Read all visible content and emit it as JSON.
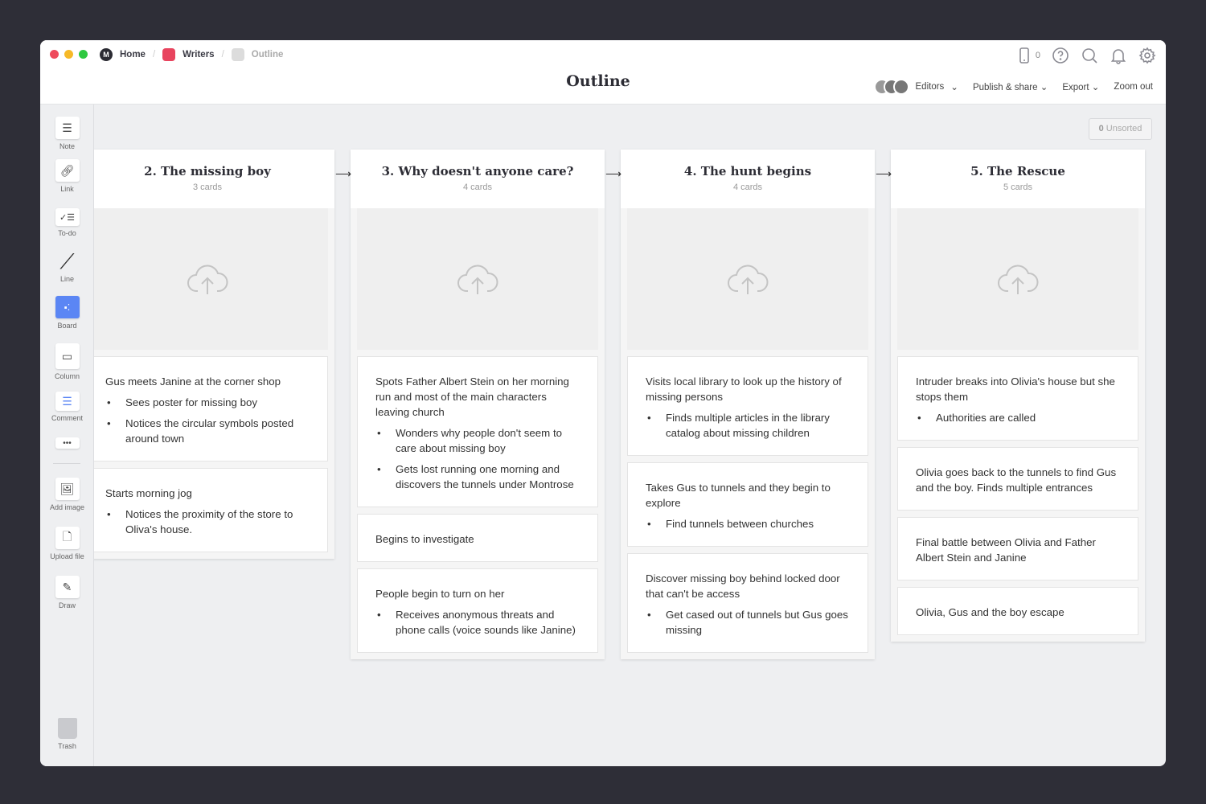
{
  "window": {
    "traffic_lights": [
      "#ee4a5c",
      "#f6b928",
      "#2ec840"
    ]
  },
  "breadcrumb": [
    {
      "label": "Home",
      "icon": "milanote-logo",
      "color": "#2b2b33"
    },
    {
      "label": "Writers",
      "icon": "board-icon",
      "color": "#e8445e"
    },
    {
      "label": "Outline",
      "icon": "board-icon",
      "color": "#dcdcdc"
    }
  ],
  "header": {
    "title": "Outline",
    "device_count": "0",
    "editors": "Editors",
    "publish": "Publish & share",
    "export": "Export",
    "zoom": "Zoom out"
  },
  "sidebar": {
    "tools": [
      "Note",
      "Link",
      "To-do",
      "Line",
      "Board",
      "Column",
      "Comment",
      "Add image",
      "Upload file",
      "Draw"
    ],
    "trash": "Trash",
    "accent": "#5b86f4"
  },
  "unsorted": {
    "count": "0",
    "label": "Unsorted"
  },
  "columns": [
    {
      "title": "2. The missing boy",
      "count": "3 cards",
      "cards": [
        {
          "text": "Gus meets Janine at the corner shop",
          "bullets": [
            "Sees poster for missing boy",
            "Notices the circular symbols posted around town"
          ]
        },
        {
          "text": "Starts morning jog",
          "bullets": [
            "Notices the proximity of the store to Oliva's house."
          ]
        }
      ]
    },
    {
      "title": "3. Why doesn't anyone care?",
      "count": "4 cards",
      "cards": [
        {
          "text": "Spots Father Albert Stein on her morning run and most of the main characters leaving church",
          "bullets": [
            "Wonders why people don't seem to care about missing boy",
            "Gets lost running one morning and discovers the tunnels under Montrose"
          ]
        },
        {
          "text": "Begins to investigate",
          "bullets": []
        },
        {
          "text": "People begin to turn on her",
          "bullets": [
            "Receives anonymous threats and phone calls (voice sounds like Janine)"
          ]
        }
      ]
    },
    {
      "title": "4. The hunt begins",
      "count": "4 cards",
      "cards": [
        {
          "text": "Visits local library to look up the history of missing persons",
          "bullets": [
            "Finds multiple articles in the library catalog about missing children"
          ]
        },
        {
          "text": "Takes Gus to tunnels and they begin to explore",
          "bullets": [
            "Find tunnels between churches"
          ]
        },
        {
          "text": "Discover missing boy behind locked door that can't be access",
          "bullets": [
            "Get cased out of tunnels but Gus goes missing"
          ]
        }
      ]
    },
    {
      "title": "5. The Rescue",
      "count": "5 cards",
      "cards": [
        {
          "text": "Intruder breaks into Olivia's house but she stops them",
          "bullets": [
            "Authorities are called"
          ]
        },
        {
          "text": "Olivia goes back to the tunnels to find Gus and the boy. Finds multiple entrances",
          "bullets": []
        },
        {
          "text": "Final battle between Olivia and Father Albert Stein and Janine",
          "bullets": []
        },
        {
          "text": "Olivia, Gus and the boy escape",
          "bullets": []
        }
      ]
    }
  ]
}
